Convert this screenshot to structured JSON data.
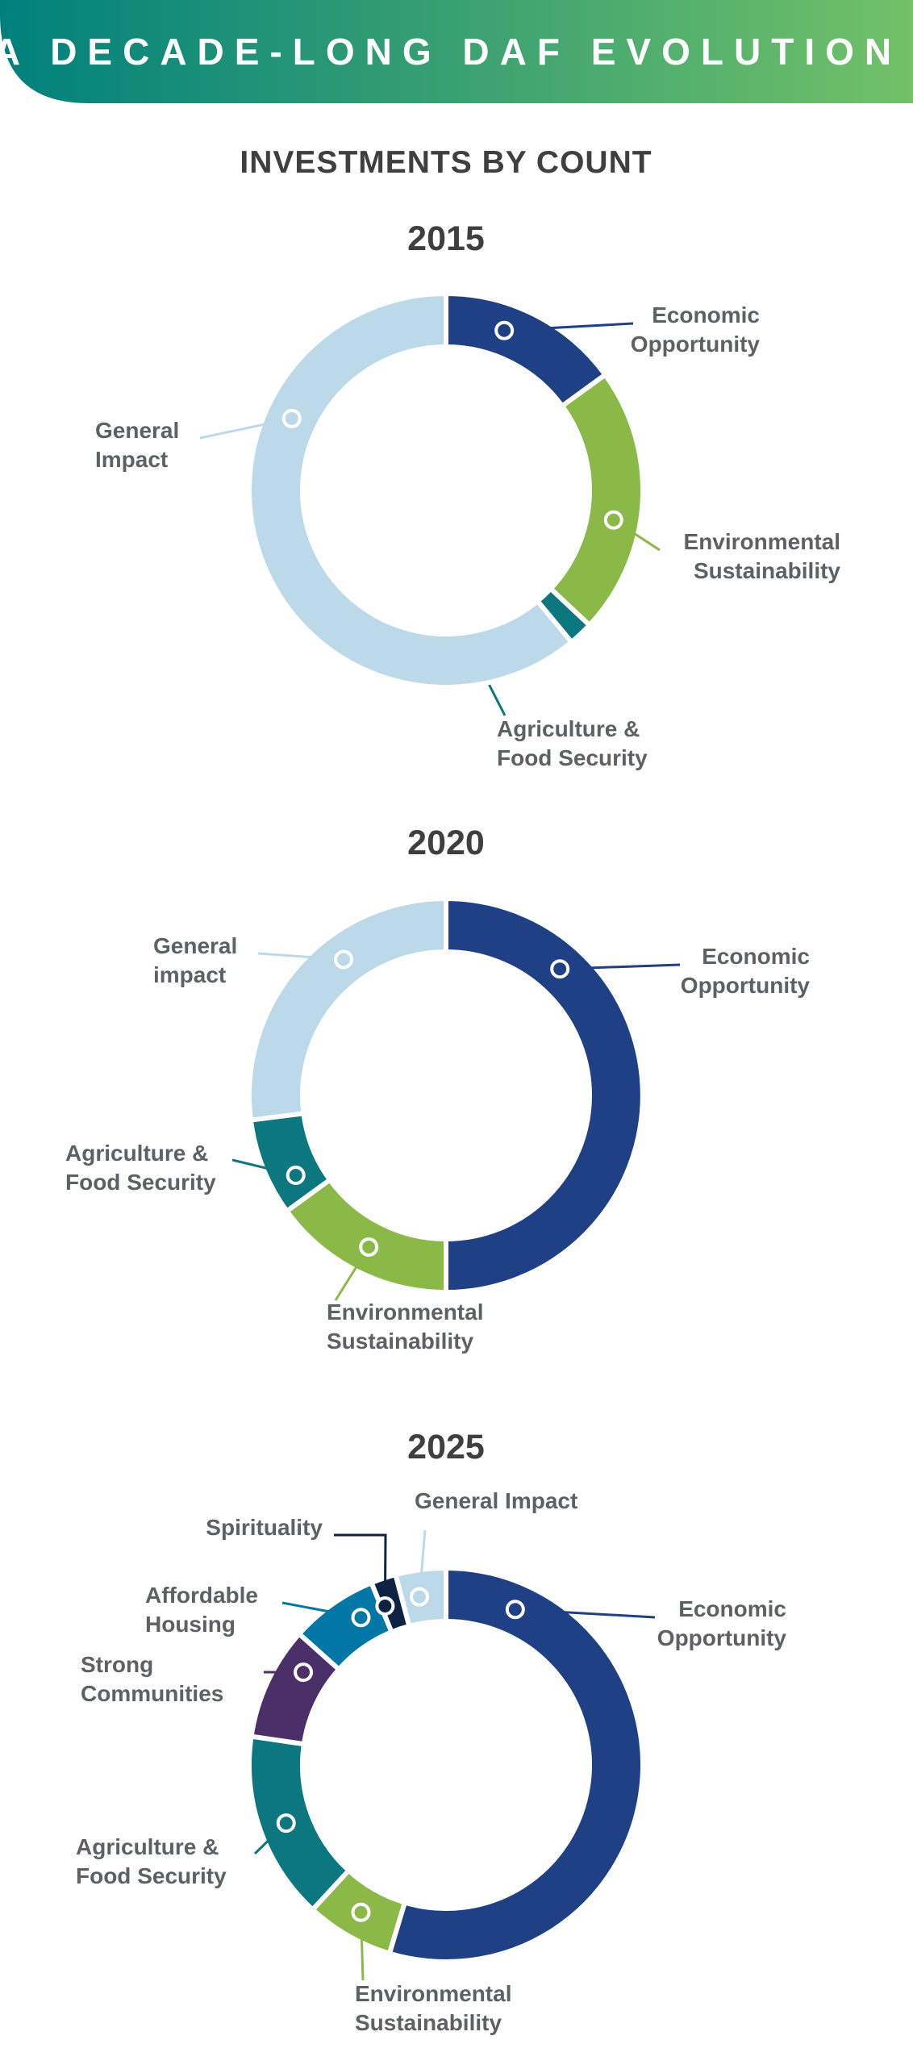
{
  "banner": {
    "title": "A DECADE-LONG DAF EVOLUTION",
    "gradient_start": "#00807d",
    "gradient_end": "#72c167"
  },
  "subtitle": "INVESTMENTS BY COUNT",
  "colors": {
    "Economic Opportunity": "#1f4085",
    "Environmental Sustainability": "#8ab947",
    "Agriculture & Food Security": "#0d7780",
    "General Impact": "#bcd9ea",
    "Strong Communities": "#4a2f69",
    "Affordable Housing": "#0276a5",
    "Spirituality": "#0e2343",
    "text": "#5d6164",
    "heading": "#3f3f3f"
  },
  "chart_data": [
    {
      "type": "pie",
      "variant": "donut",
      "title": "2015",
      "unit": "percent of investment count (estimated)",
      "start": "12 o'clock, clockwise",
      "slices": [
        {
          "name": "Economic Opportunity",
          "label": "Economic\nOpportunity",
          "value": 15,
          "label_side": "right"
        },
        {
          "name": "Environmental Sustainability",
          "label": "Environmental\nSustainability",
          "value": 22,
          "label_side": "right"
        },
        {
          "name": "Agriculture & Food Security",
          "label": "Agriculture &\nFood Security",
          "value": 2,
          "label_side": "below"
        },
        {
          "name": "General Impact",
          "label": "General\nImpact",
          "value": 61,
          "label_side": "left"
        }
      ]
    },
    {
      "type": "pie",
      "variant": "donut",
      "title": "2020",
      "unit": "percent of investment count (estimated)",
      "start": "12 o'clock, clockwise",
      "slices": [
        {
          "name": "Economic Opportunity",
          "label": "Economic\nOpportunity",
          "value": 50,
          "label_side": "right"
        },
        {
          "name": "Environmental Sustainability",
          "label": "Environmental\nSustainability",
          "value": 15,
          "label_side": "below"
        },
        {
          "name": "Agriculture & Food Security",
          "label": "Agriculture &\nFood Security",
          "value": 8,
          "label_side": "left"
        },
        {
          "name": "General Impact",
          "label": "General\nimpact",
          "value": 27,
          "label_side": "left"
        }
      ]
    },
    {
      "type": "pie",
      "variant": "donut",
      "title": "2025",
      "unit": "percent of investment count (estimated)",
      "start": "12 o'clock, clockwise",
      "slices": [
        {
          "name": "Economic Opportunity",
          "label": "Economic\nOpportunity",
          "value": 53,
          "label_side": "right"
        },
        {
          "name": "Environmental Sustainability",
          "label": "Environmental\nSustainability",
          "value": 7,
          "label_side": "below"
        },
        {
          "name": "Agriculture & Food Security",
          "label": "Agriculture &\nFood Security",
          "value": 15,
          "label_side": "left"
        },
        {
          "name": "Strong Communities",
          "label": "Strong\nCommunities",
          "value": 9,
          "label_side": "left"
        },
        {
          "name": "Affordable Housing",
          "label": "Affordable\nHousing",
          "value": 7,
          "label_side": "left"
        },
        {
          "name": "Spirituality",
          "label": "Spirituality",
          "value": 2,
          "label_side": "top-left"
        },
        {
          "name": "General Impact",
          "label": "General Impact",
          "value": 4,
          "label_side": "top"
        }
      ]
    }
  ]
}
